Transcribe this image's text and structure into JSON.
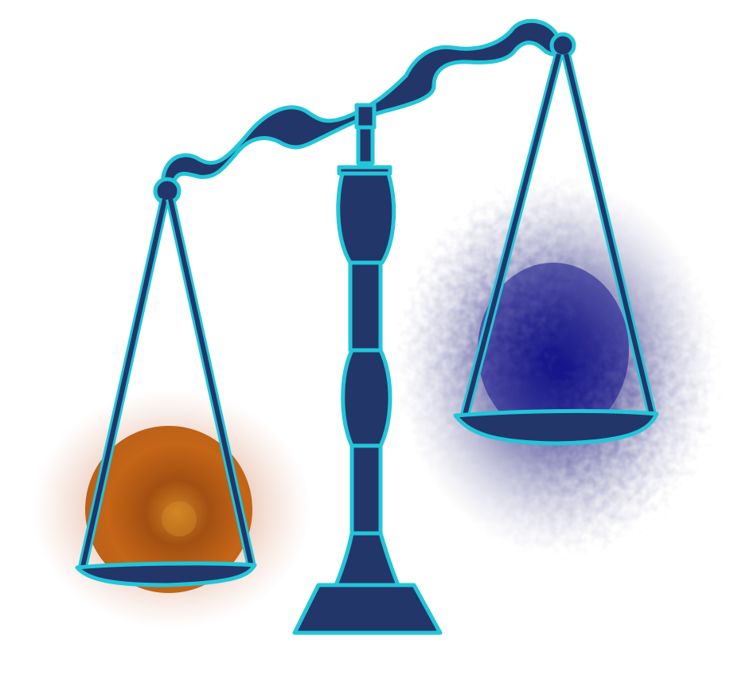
{
  "colors": {
    "background": "#ffffff",
    "fill": "#22366a",
    "outline": "#22c6d8",
    "orange_glow": "#b4520f",
    "orange_core": "#c85f0e",
    "purple_glow": "#6a6aa8",
    "purple_core": "#1a1a8a"
  },
  "icons": {
    "scale": "balance-scale-icon",
    "left_mass": "orange-sphere-icon",
    "right_mass": "dark-purple-cloud-icon"
  }
}
